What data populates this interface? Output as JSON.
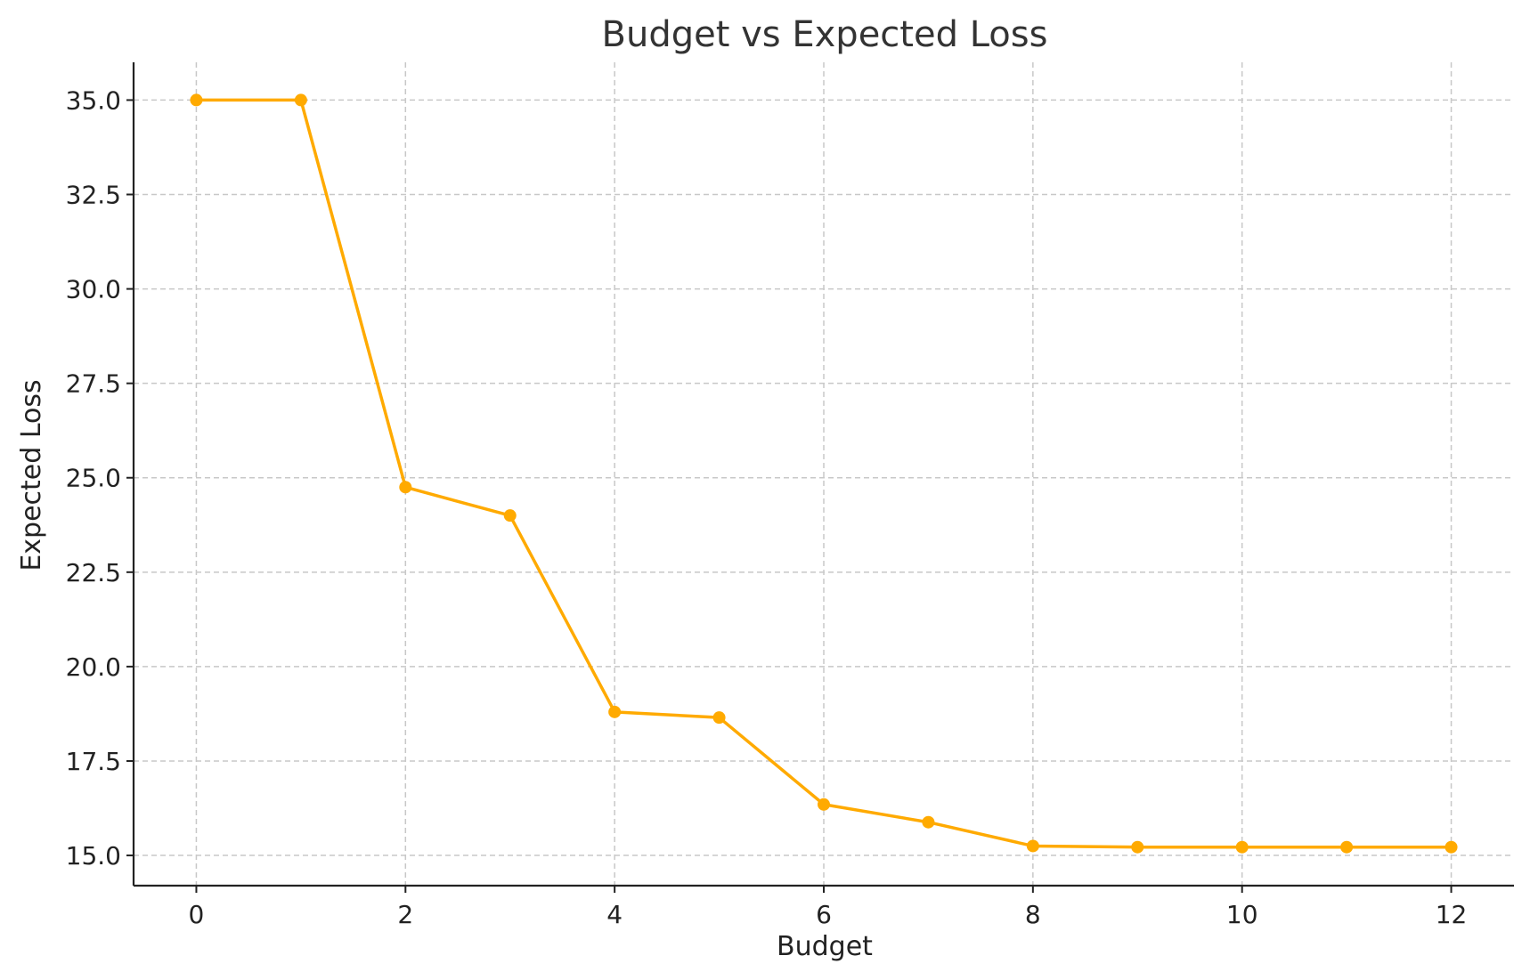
{
  "chart_data": {
    "type": "line",
    "title": "Budget vs Expected Loss",
    "xlabel": "Budget",
    "ylabel": "Expected Loss",
    "xlim": [
      -0.6,
      12.6
    ],
    "ylim": [
      14.2,
      36.0
    ],
    "xticks": [
      0,
      2,
      4,
      6,
      8,
      10,
      12
    ],
    "xtick_labels": [
      "0",
      "2",
      "4",
      "6",
      "8",
      "10",
      "12"
    ],
    "yticks": [
      15.0,
      17.5,
      20.0,
      22.5,
      25.0,
      27.5,
      30.0,
      32.5,
      35.0
    ],
    "ytick_labels": [
      "15.0",
      "17.5",
      "20.0",
      "22.5",
      "25.0",
      "27.5",
      "30.0",
      "32.5",
      "35.0"
    ],
    "grid": true,
    "colors": {
      "line": "#FFAA00"
    },
    "series": [
      {
        "marker": "circle",
        "x": [
          0,
          1,
          2,
          3,
          4,
          5,
          6,
          7,
          8,
          9,
          10,
          11,
          12
        ],
        "y": [
          35.0,
          35.0,
          24.75,
          24.0,
          18.8,
          18.65,
          16.35,
          15.88,
          15.25,
          15.22,
          15.22,
          15.22,
          15.22
        ]
      }
    ]
  }
}
